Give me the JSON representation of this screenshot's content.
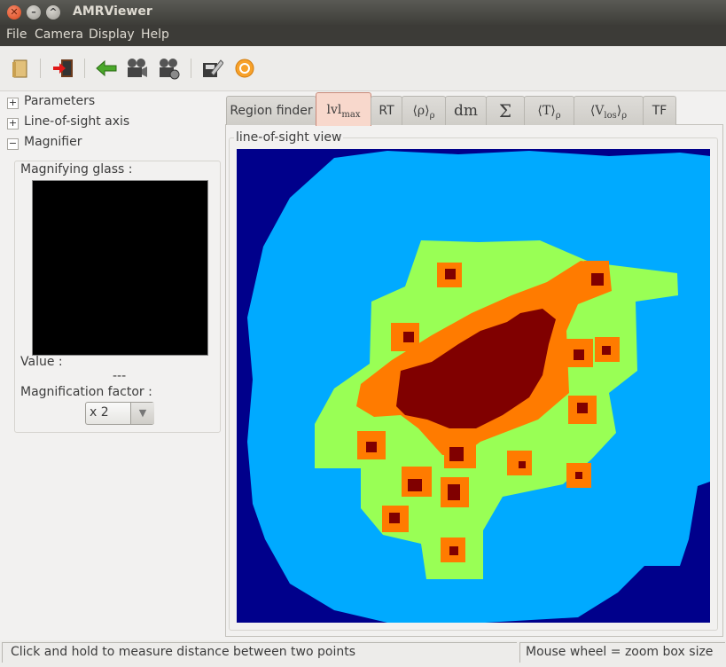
{
  "window": {
    "title": "AMRViewer"
  },
  "menu": {
    "items": [
      "File",
      "Camera",
      "Display",
      "Help"
    ]
  },
  "toolbar": {
    "icons": [
      "open-file-icon",
      "exit-icon",
      "back-arrow-icon",
      "camera-record-icon",
      "camera-settings-icon",
      "save-edit-icon",
      "refresh-icon"
    ]
  },
  "sidebar": {
    "sections": [
      {
        "label": "Parameters",
        "expanded": false
      },
      {
        "label": "Line-of-sight axis",
        "expanded": false
      },
      {
        "label": "Magnifier",
        "expanded": true
      }
    ],
    "magnifier": {
      "glass_label": "Magnifying glass :",
      "value_label": "Value :",
      "value": "---",
      "factor_label": "Magnification factor :",
      "factor_value": "x 2"
    }
  },
  "tabs": {
    "region_finder": "Region finder",
    "lvl_base": "lvl",
    "lvl_sub": "max",
    "rt": "RT",
    "rho_base": "⟨ρ⟩",
    "rho_sub": "ρ",
    "dm": "dm",
    "sigma": "Σ",
    "t_base": "⟨T⟩",
    "t_sub": "ρ",
    "v_base": "⟨V",
    "v_sub1": "los",
    "v_close": "⟩",
    "v_sub2": "ρ",
    "tf": "TF",
    "active": "lvl_max"
  },
  "view": {
    "frame_label": "line-of-sight view",
    "levels": [
      {
        "color": "#00008b"
      },
      {
        "color": "#00aaff"
      },
      {
        "color": "#99ff55"
      },
      {
        "color": "#ff7b00"
      },
      {
        "color": "#800000"
      }
    ]
  },
  "status": {
    "left": "Click and hold to measure distance between two points",
    "right": "Mouse wheel = zoom box size"
  }
}
